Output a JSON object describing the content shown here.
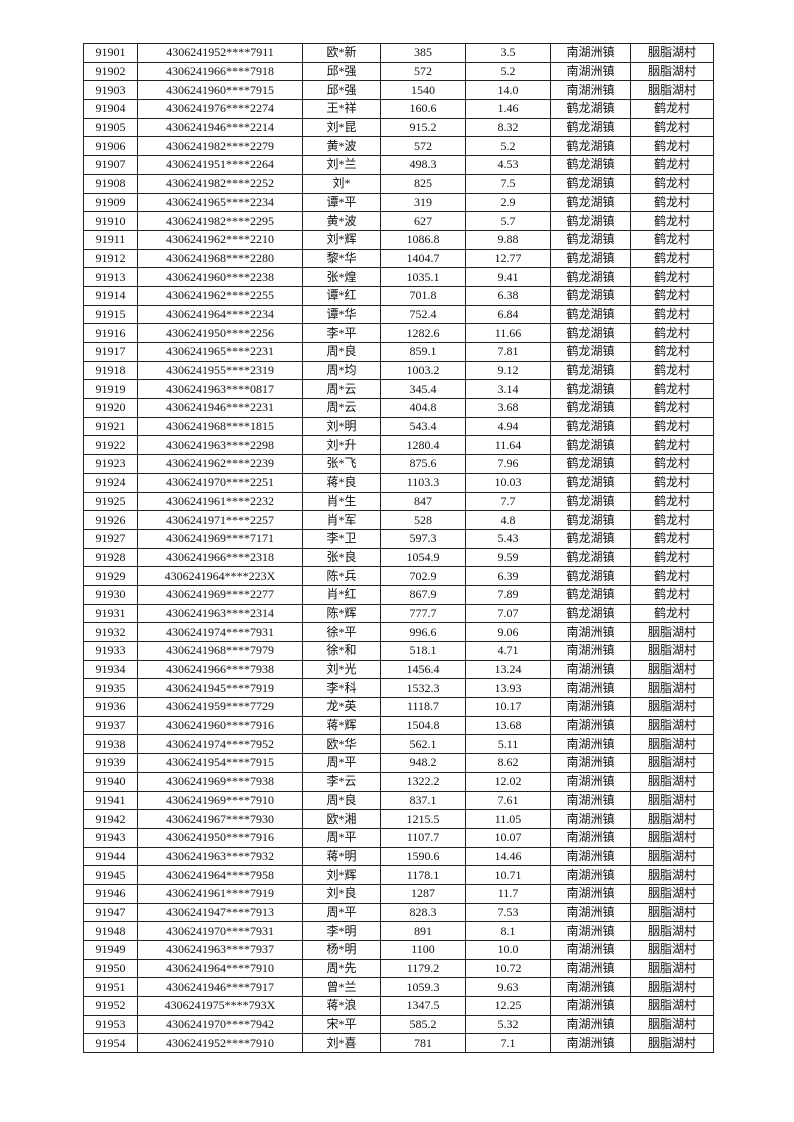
{
  "rows": [
    [
      "91901",
      "4306241952****7911",
      "欧*新",
      "385",
      "3.5",
      "南湖洲镇",
      "胭脂湖村"
    ],
    [
      "91902",
      "4306241966****7918",
      "邱*强",
      "572",
      "5.2",
      "南湖洲镇",
      "胭脂湖村"
    ],
    [
      "91903",
      "4306241960****7915",
      "邱*强",
      "1540",
      "14.0",
      "南湖洲镇",
      "胭脂湖村"
    ],
    [
      "91904",
      "4306241976****2274",
      "王*祥",
      "160.6",
      "1.46",
      "鹤龙湖镇",
      "鹤龙村"
    ],
    [
      "91905",
      "4306241946****2214",
      "刘*昆",
      "915.2",
      "8.32",
      "鹤龙湖镇",
      "鹤龙村"
    ],
    [
      "91906",
      "4306241982****2279",
      "黄*波",
      "572",
      "5.2",
      "鹤龙湖镇",
      "鹤龙村"
    ],
    [
      "91907",
      "4306241951****2264",
      "刘*兰",
      "498.3",
      "4.53",
      "鹤龙湖镇",
      "鹤龙村"
    ],
    [
      "91908",
      "4306241982****2252",
      "刘*",
      "825",
      "7.5",
      "鹤龙湖镇",
      "鹤龙村"
    ],
    [
      "91909",
      "4306241965****2234",
      "谭*平",
      "319",
      "2.9",
      "鹤龙湖镇",
      "鹤龙村"
    ],
    [
      "91910",
      "4306241982****2295",
      "黄*波",
      "627",
      "5.7",
      "鹤龙湖镇",
      "鹤龙村"
    ],
    [
      "91911",
      "4306241962****2210",
      "刘*辉",
      "1086.8",
      "9.88",
      "鹤龙湖镇",
      "鹤龙村"
    ],
    [
      "91912",
      "4306241968****2280",
      "黎*华",
      "1404.7",
      "12.77",
      "鹤龙湖镇",
      "鹤龙村"
    ],
    [
      "91913",
      "4306241960****2238",
      "张*煌",
      "1035.1",
      "9.41",
      "鹤龙湖镇",
      "鹤龙村"
    ],
    [
      "91914",
      "4306241962****2255",
      "谭*红",
      "701.8",
      "6.38",
      "鹤龙湖镇",
      "鹤龙村"
    ],
    [
      "91915",
      "4306241964****2234",
      "谭*华",
      "752.4",
      "6.84",
      "鹤龙湖镇",
      "鹤龙村"
    ],
    [
      "91916",
      "4306241950****2256",
      "李*平",
      "1282.6",
      "11.66",
      "鹤龙湖镇",
      "鹤龙村"
    ],
    [
      "91917",
      "4306241965****2231",
      "周*良",
      "859.1",
      "7.81",
      "鹤龙湖镇",
      "鹤龙村"
    ],
    [
      "91918",
      "4306241955****2319",
      "周*均",
      "1003.2",
      "9.12",
      "鹤龙湖镇",
      "鹤龙村"
    ],
    [
      "91919",
      "4306241963****0817",
      "周*云",
      "345.4",
      "3.14",
      "鹤龙湖镇",
      "鹤龙村"
    ],
    [
      "91920",
      "4306241946****2231",
      "周*云",
      "404.8",
      "3.68",
      "鹤龙湖镇",
      "鹤龙村"
    ],
    [
      "91921",
      "4306241968****1815",
      "刘*明",
      "543.4",
      "4.94",
      "鹤龙湖镇",
      "鹤龙村"
    ],
    [
      "91922",
      "4306241963****2298",
      "刘*升",
      "1280.4",
      "11.64",
      "鹤龙湖镇",
      "鹤龙村"
    ],
    [
      "91923",
      "4306241962****2239",
      "张*飞",
      "875.6",
      "7.96",
      "鹤龙湖镇",
      "鹤龙村"
    ],
    [
      "91924",
      "4306241970****2251",
      "蒋*良",
      "1103.3",
      "10.03",
      "鹤龙湖镇",
      "鹤龙村"
    ],
    [
      "91925",
      "4306241961****2232",
      "肖*生",
      "847",
      "7.7",
      "鹤龙湖镇",
      "鹤龙村"
    ],
    [
      "91926",
      "4306241971****2257",
      "肖*军",
      "528",
      "4.8",
      "鹤龙湖镇",
      "鹤龙村"
    ],
    [
      "91927",
      "4306241969****7171",
      "李*卫",
      "597.3",
      "5.43",
      "鹤龙湖镇",
      "鹤龙村"
    ],
    [
      "91928",
      "4306241966****2318",
      "张*良",
      "1054.9",
      "9.59",
      "鹤龙湖镇",
      "鹤龙村"
    ],
    [
      "91929",
      "4306241964****223X",
      "陈*兵",
      "702.9",
      "6.39",
      "鹤龙湖镇",
      "鹤龙村"
    ],
    [
      "91930",
      "4306241969****2277",
      "肖*红",
      "867.9",
      "7.89",
      "鹤龙湖镇",
      "鹤龙村"
    ],
    [
      "91931",
      "4306241963****2314",
      "陈*辉",
      "777.7",
      "7.07",
      "鹤龙湖镇",
      "鹤龙村"
    ],
    [
      "91932",
      "4306241974****7931",
      "徐*平",
      "996.6",
      "9.06",
      "南湖洲镇",
      "胭脂湖村"
    ],
    [
      "91933",
      "4306241968****7979",
      "徐*和",
      "518.1",
      "4.71",
      "南湖洲镇",
      "胭脂湖村"
    ],
    [
      "91934",
      "4306241966****7938",
      "刘*光",
      "1456.4",
      "13.24",
      "南湖洲镇",
      "胭脂湖村"
    ],
    [
      "91935",
      "4306241945****7919",
      "李*科",
      "1532.3",
      "13.93",
      "南湖洲镇",
      "胭脂湖村"
    ],
    [
      "91936",
      "4306241959****7729",
      "龙*英",
      "1118.7",
      "10.17",
      "南湖洲镇",
      "胭脂湖村"
    ],
    [
      "91937",
      "4306241960****7916",
      "蒋*辉",
      "1504.8",
      "13.68",
      "南湖洲镇",
      "胭脂湖村"
    ],
    [
      "91938",
      "4306241974****7952",
      "欧*华",
      "562.1",
      "5.11",
      "南湖洲镇",
      "胭脂湖村"
    ],
    [
      "91939",
      "4306241954****7915",
      "周*平",
      "948.2",
      "8.62",
      "南湖洲镇",
      "胭脂湖村"
    ],
    [
      "91940",
      "4306241969****7938",
      "李*云",
      "1322.2",
      "12.02",
      "南湖洲镇",
      "胭脂湖村"
    ],
    [
      "91941",
      "4306241969****7910",
      "周*良",
      "837.1",
      "7.61",
      "南湖洲镇",
      "胭脂湖村"
    ],
    [
      "91942",
      "4306241967****7930",
      "欧*湘",
      "1215.5",
      "11.05",
      "南湖洲镇",
      "胭脂湖村"
    ],
    [
      "91943",
      "4306241950****7916",
      "周*平",
      "1107.7",
      "10.07",
      "南湖洲镇",
      "胭脂湖村"
    ],
    [
      "91944",
      "4306241963****7932",
      "蒋*明",
      "1590.6",
      "14.46",
      "南湖洲镇",
      "胭脂湖村"
    ],
    [
      "91945",
      "4306241964****7958",
      "刘*辉",
      "1178.1",
      "10.71",
      "南湖洲镇",
      "胭脂湖村"
    ],
    [
      "91946",
      "4306241961****7919",
      "刘*良",
      "1287",
      "11.7",
      "南湖洲镇",
      "胭脂湖村"
    ],
    [
      "91947",
      "4306241947****7913",
      "周*平",
      "828.3",
      "7.53",
      "南湖洲镇",
      "胭脂湖村"
    ],
    [
      "91948",
      "4306241970****7931",
      "李*明",
      "891",
      "8.1",
      "南湖洲镇",
      "胭脂湖村"
    ],
    [
      "91949",
      "4306241963****7937",
      "杨*明",
      "1100",
      "10.0",
      "南湖洲镇",
      "胭脂湖村"
    ],
    [
      "91950",
      "4306241964****7910",
      "周*先",
      "1179.2",
      "10.72",
      "南湖洲镇",
      "胭脂湖村"
    ],
    [
      "91951",
      "4306241946****7917",
      "曾*兰",
      "1059.3",
      "9.63",
      "南湖洲镇",
      "胭脂湖村"
    ],
    [
      "91952",
      "4306241975****793X",
      "蒋*浪",
      "1347.5",
      "12.25",
      "南湖洲镇",
      "胭脂湖村"
    ],
    [
      "91953",
      "4306241970****7942",
      "宋*平",
      "585.2",
      "5.32",
      "南湖洲镇",
      "胭脂湖村"
    ],
    [
      "91954",
      "4306241952****7910",
      "刘*喜",
      "781",
      "7.1",
      "南湖洲镇",
      "胭脂湖村"
    ]
  ]
}
